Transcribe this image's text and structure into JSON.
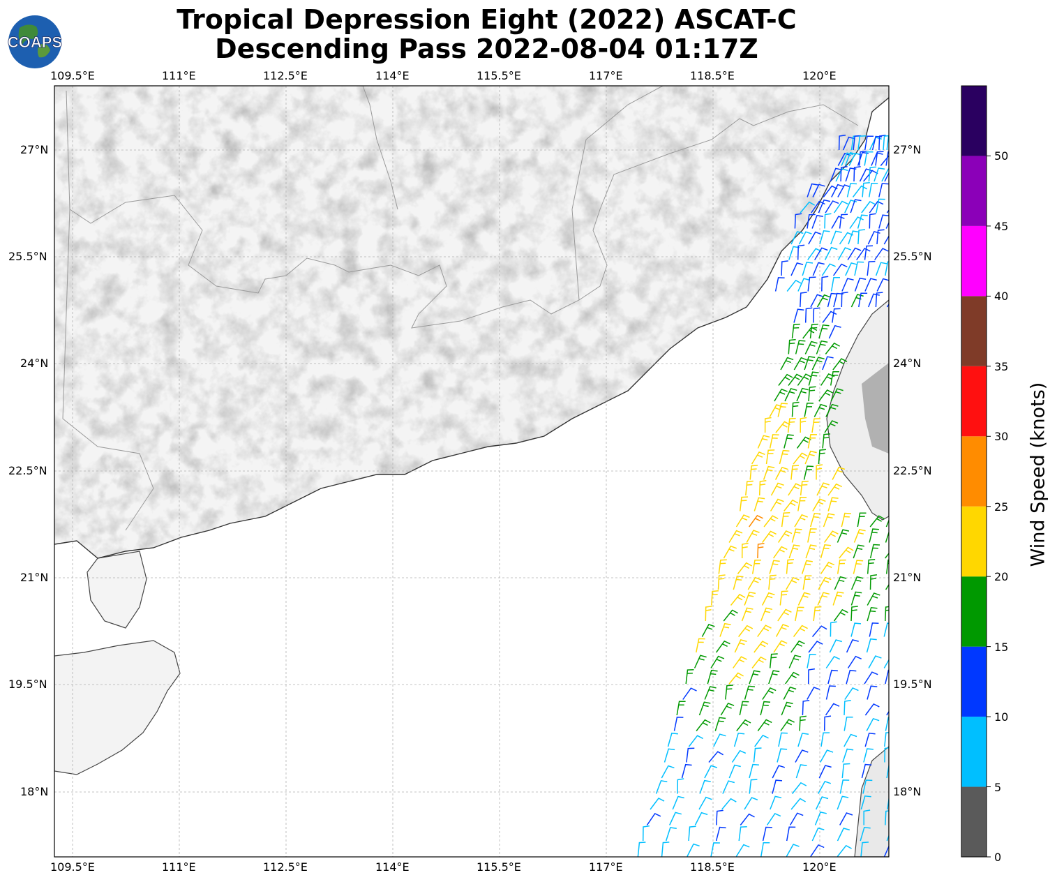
{
  "title_line1": "Tropical Depression Eight (2022) ASCAT-C",
  "title_line2": "Descending Pass 2022-08-04 01:17Z",
  "logo_text": "COAPS",
  "lon_ticks": [
    "109.5°E",
    "111°E",
    "112.5°E",
    "114°E",
    "115.5°E",
    "117°E",
    "118.5°E",
    "120°E"
  ],
  "lat_ticks": [
    "27°N",
    "25.5°N",
    "24°N",
    "22.5°N",
    "21°N",
    "19.5°N",
    "18°N"
  ],
  "colorbar": {
    "title": "Wind Speed (knots)",
    "labels": [
      "0",
      "5",
      "10",
      "15",
      "20",
      "25",
      "30",
      "35",
      "40",
      "45",
      "50"
    ],
    "colors": [
      "#5a5a5a",
      "#00bfff",
      "#0038ff",
      "#009900",
      "#ffd700",
      "#ff8c00",
      "#ff1010",
      "#7f3b28",
      "#ff00ff",
      "#8b00b8",
      "#2a0060"
    ]
  },
  "map": {
    "lon_range": [
      109.25,
      121.0
    ],
    "lat_range": [
      17.1,
      27.9
    ],
    "wind_color_bins_knots": [
      0,
      5,
      10,
      15,
      20,
      25,
      30,
      35,
      40,
      45,
      50
    ]
  }
}
